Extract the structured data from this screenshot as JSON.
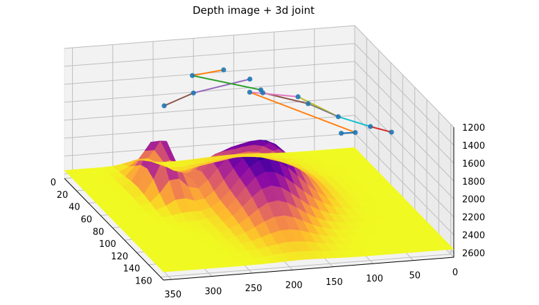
{
  "chart_data": {
    "type": "3d-surface-with-skeleton",
    "title": "Depth image + 3d joint",
    "colormap": "plasma",
    "pane_color": "#f2f2f2",
    "grid": true,
    "x_axis": {
      "ticks": [
        0,
        50,
        100,
        150,
        200,
        250,
        300,
        350
      ],
      "labels": [
        "0",
        "50",
        "100",
        "150",
        "200",
        "250",
        "300",
        "350"
      ]
    },
    "y_axis": {
      "ticks": [
        0,
        20,
        40,
        60,
        80,
        100,
        120,
        140,
        160
      ],
      "labels": [
        "0",
        "20",
        "40",
        "60",
        "80",
        "100",
        "120",
        "140",
        "160"
      ]
    },
    "z_axis": {
      "ticks": [
        1200,
        1400,
        1600,
        1800,
        2000,
        2200,
        2400,
        2600
      ],
      "labels": [
        "1200",
        "1400",
        "1600",
        "1800",
        "2000",
        "2200",
        "2400",
        "2600"
      ],
      "inverted": true
    },
    "xlim": [
      0,
      360
    ],
    "ylim": [
      0,
      165
    ],
    "zlim": [
      1200,
      2650
    ],
    "surface": {
      "background_depth": 2560,
      "features": [
        {
          "x": 270,
          "y": 40,
          "depth": 1980,
          "sx": 14,
          "sy": 18
        },
        {
          "x": 150,
          "y": 60,
          "depth": 2050,
          "sx": 32,
          "sy": 25
        },
        {
          "x": 185,
          "y": 95,
          "depth": 2200,
          "sx": 28,
          "sy": 28
        },
        {
          "x": 210,
          "y": 50,
          "depth": 2300,
          "sx": 22,
          "sy": 16
        }
      ]
    },
    "joints": [
      {
        "x": 240,
        "y": 5,
        "z": 1890
      },
      {
        "x": 200,
        "y": 0,
        "z": 1810
      },
      {
        "x": 130,
        "y": 0,
        "z": 1705
      },
      {
        "x": 170,
        "y": 10,
        "z": 1505
      },
      {
        "x": 220,
        "y": 25,
        "z": 1430
      },
      {
        "x": 135,
        "y": 25,
        "z": 1650
      },
      {
        "x": 140,
        "y": 35,
        "z": 1610
      },
      {
        "x": 95,
        "y": 50,
        "z": 1660
      },
      {
        "x": 160,
        "y": 40,
        "z": 1555
      },
      {
        "x": 115,
        "y": 60,
        "z": 1500
      },
      {
        "x": 80,
        "y": 80,
        "z": 1610
      },
      {
        "x": 70,
        "y": 95,
        "z": 1690
      },
      {
        "x": 80,
        "y": 85,
        "z": 1760
      },
      {
        "x": 55,
        "y": 100,
        "z": 1600
      },
      {
        "x": 40,
        "y": 115,
        "z": 1570
      }
    ],
    "bones": [
      {
        "from": 0,
        "to": 1,
        "color": "#8c564b"
      },
      {
        "from": 1,
        "to": 2,
        "color": "#9467bd"
      },
      {
        "from": 3,
        "to": 4,
        "color": "#ff7f0e"
      },
      {
        "from": 4,
        "to": 5,
        "color": "#2ca02c"
      },
      {
        "from": 5,
        "to": 6,
        "color": "#d62728"
      },
      {
        "from": 6,
        "to": 7,
        "color": "#8c564b"
      },
      {
        "from": 8,
        "to": 9,
        "color": "#e377c2"
      },
      {
        "from": 9,
        "to": 10,
        "color": "#bcbd22"
      },
      {
        "from": 8,
        "to": 11,
        "color": "#ff7f0e"
      },
      {
        "from": 11,
        "to": 12,
        "color": "#1f77b4"
      },
      {
        "from": 10,
        "to": 13,
        "color": "#17becf"
      },
      {
        "from": 13,
        "to": 14,
        "color": "#d62728"
      },
      {
        "from": 7,
        "to": 10,
        "color": "#7f7f7f"
      }
    ],
    "joint_color": "#1f77b4"
  }
}
